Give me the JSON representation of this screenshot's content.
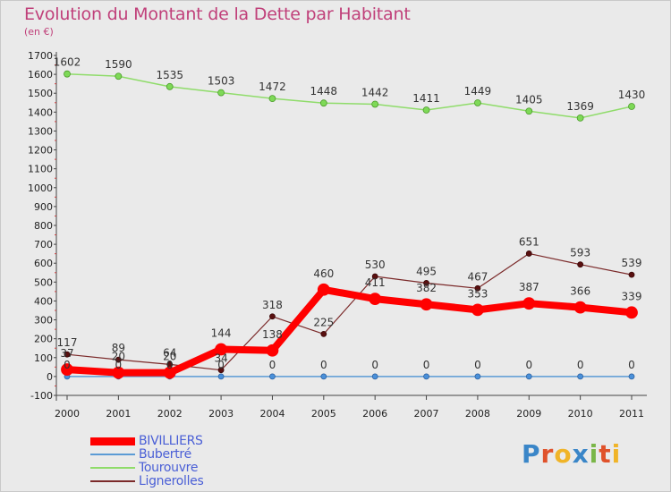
{
  "title": "Evolution du Montant de la Dette par Habitant",
  "subtitle": "(en €)",
  "logo": {
    "text": "Proxiti",
    "colors": [
      "#3a86c8",
      "#e0522b",
      "#f0b428",
      "#3a86c8",
      "#7ab648",
      "#e0522b",
      "#f0b428"
    ]
  },
  "colors": {
    "title": "#c0407a",
    "legend_text": "#4a5fd6",
    "background": "#eaeaea"
  },
  "chart_data": {
    "type": "line",
    "title": "Evolution du Montant de la Dette par Habitant",
    "ylabel": "(en €)",
    "xlabel": "",
    "x": [
      "2000",
      "2001",
      "2002",
      "2003",
      "2004",
      "2005",
      "2006",
      "2007",
      "2008",
      "2009",
      "2010",
      "2011"
    ],
    "ylim": [
      -100,
      1700
    ],
    "yticks": [
      -100,
      0,
      100,
      200,
      300,
      400,
      500,
      600,
      700,
      800,
      900,
      1000,
      1100,
      1200,
      1300,
      1400,
      1500,
      1600,
      1700
    ],
    "grid": false,
    "legend_position": "bottom-left",
    "series": [
      {
        "name": "BIVILLIERS",
        "color": "#ff0000",
        "values": [
          37,
          20,
          20,
          144,
          138,
          460,
          411,
          382,
          353,
          387,
          366,
          339
        ],
        "labels": [
          "37",
          "20",
          "20",
          "144",
          "138",
          "460",
          "411",
          "382",
          "353",
          "387",
          "366",
          "339"
        ]
      },
      {
        "name": "Bubertré",
        "color": "#5b9bd5",
        "values": [
          0,
          0,
          0,
          0,
          0,
          0,
          0,
          0,
          0,
          0,
          0,
          0
        ],
        "labels": [
          "0",
          "0",
          "0",
          "0",
          "0",
          "0",
          "0",
          "0",
          "0",
          "0",
          "0",
          "0"
        ]
      },
      {
        "name": "Tourouvre",
        "color": "#8fdc6a",
        "values": [
          1602,
          1590,
          1535,
          1503,
          1472,
          1448,
          1442,
          1411,
          1449,
          1405,
          1369,
          1430
        ],
        "labels": [
          "1602",
          "1590",
          "1535",
          "1503",
          "1472",
          "1448",
          "1442",
          "1411",
          "1449",
          "1405",
          "1369",
          "1430"
        ]
      },
      {
        "name": "Lignerolles",
        "color": "#7b2a2a",
        "values": [
          117,
          89,
          64,
          34,
          318,
          225,
          530,
          495,
          467,
          651,
          593,
          539
        ],
        "labels": [
          "117",
          "89",
          "64",
          "34",
          "318",
          "225",
          "530",
          "495",
          "467",
          "651",
          "593",
          "539"
        ]
      }
    ]
  }
}
